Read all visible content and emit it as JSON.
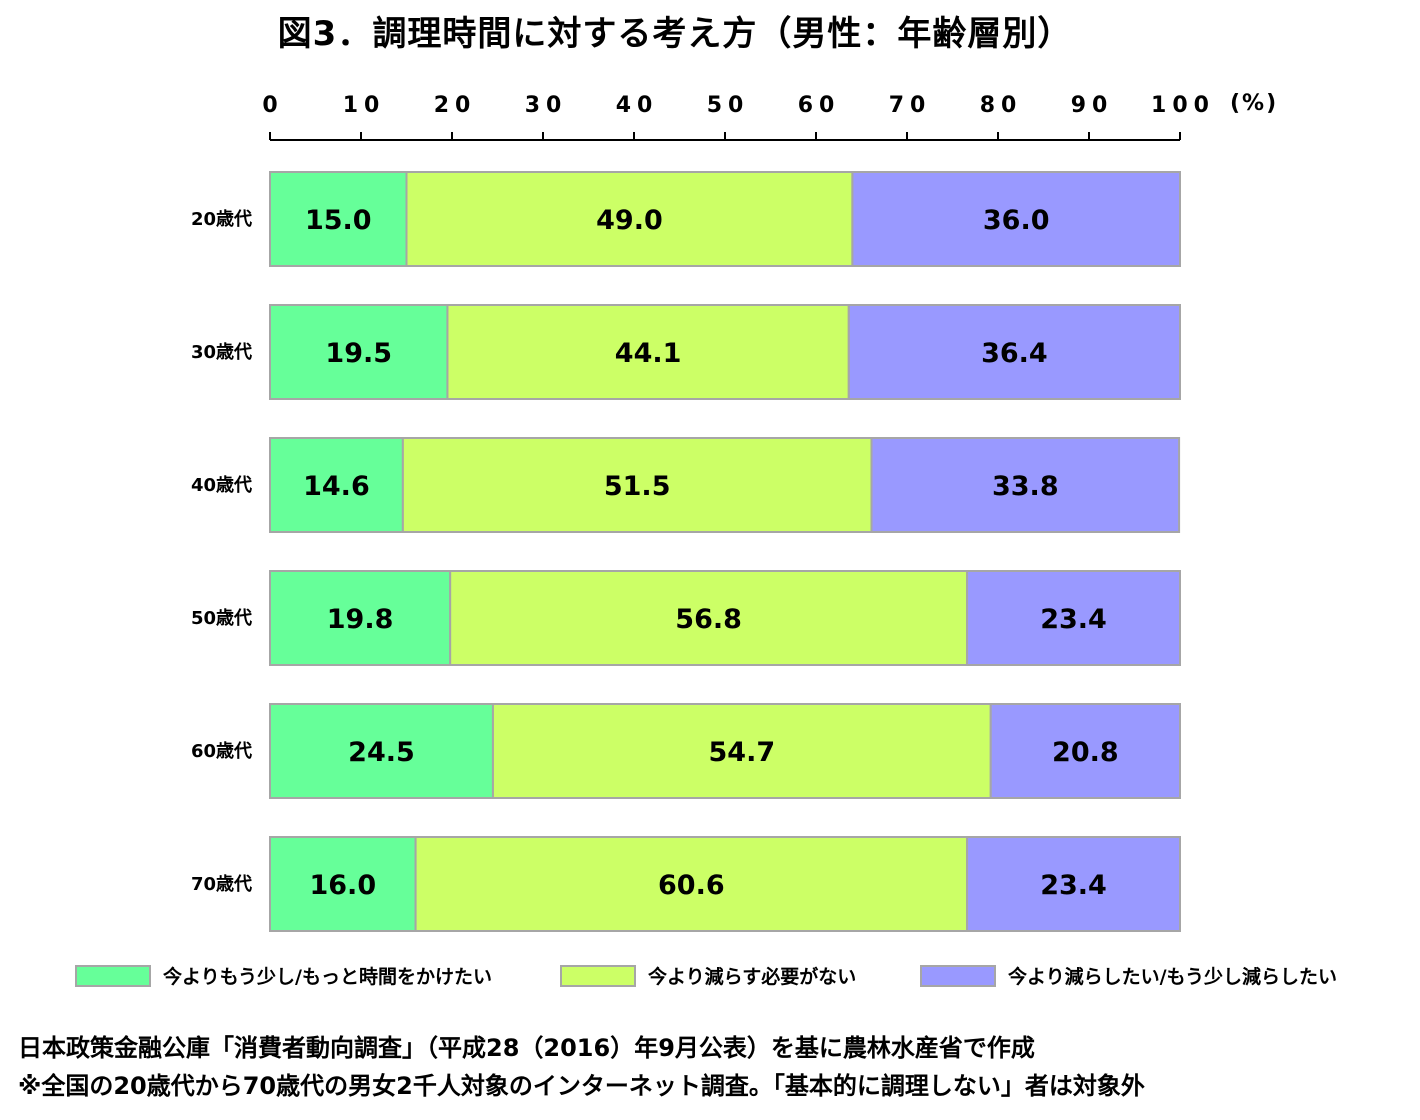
{
  "chart_data": {
    "type": "bar",
    "orientation": "horizontal",
    "stacked": true,
    "title": "図3．調理時間に対する考え方（男性：年齢層別）",
    "unit_label": "(%)",
    "xlim": [
      0,
      100
    ],
    "x_ticks": [
      "0",
      "10",
      "20",
      "30",
      "40",
      "50",
      "60",
      "70",
      "80",
      "90",
      "100"
    ],
    "grid": false,
    "legend_position": "bottom",
    "categories": [
      "20歳代",
      "30歳代",
      "40歳代",
      "50歳代",
      "60歳代",
      "70歳代"
    ],
    "series": [
      {
        "name": "今よりもう少し/もっと時間をかけたい",
        "color": "#66ff99",
        "values": [
          15.0,
          19.5,
          14.6,
          19.8,
          24.5,
          16.0
        ]
      },
      {
        "name": "今より減らす必要がない",
        "color": "#ccff66",
        "values": [
          49.0,
          44.1,
          51.5,
          56.8,
          54.7,
          60.6
        ]
      },
      {
        "name": "今より減らしたい/もう少し減らしたい",
        "color": "#9999ff",
        "values": [
          36.0,
          36.4,
          33.8,
          23.4,
          20.8,
          23.4
        ]
      }
    ]
  },
  "footnotes": {
    "source": "日本政策金融公庫「消費者動向調査」（平成28（2016）年9月公表）を基に農林水産省で作成",
    "note": "※全国の20歳代から70歳代の男女2千人対象のインターネット調査。「基本的に調理しない」者は対象外"
  }
}
